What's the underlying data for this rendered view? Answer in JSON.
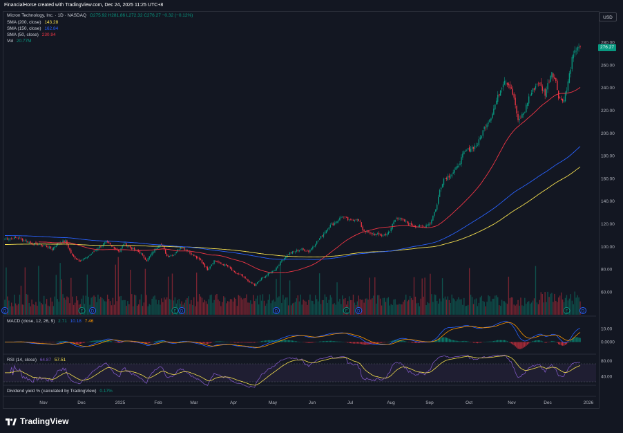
{
  "header": {
    "title": "FinancialHorse created with TradingView.com, Dec 24, 2025 11:25 UTC+8",
    "currency_button": "USD",
    "brand": "TradingView"
  },
  "legend": {
    "symbol": "Micron Technology, Inc. · 1D · NASDAQ",
    "ohlc": "O275.92 H281.86 L272.32 C276.27 −0.32 (−0.12%)",
    "sma200": {
      "label": "SMA (200, close)",
      "value": "143.28"
    },
    "sma150": {
      "label": "SMA (150, close)",
      "value": "162.84"
    },
    "sma50": {
      "label": "SMA (50, close)",
      "value": "230.94"
    },
    "vol": {
      "label": "Vol",
      "value": "20.77M"
    }
  },
  "macd_legend": {
    "label": "MACD (close, 12, 26, 9)",
    "v1": "2.71",
    "v2": "10.18",
    "v3": "7.46"
  },
  "rsi_legend": {
    "label": "RSI (14, close)",
    "v1": "64.87",
    "v2": "57.51"
  },
  "dividend_legend": {
    "label": "Dividend yield % (calculated by TradingView)",
    "value": "0.17%"
  },
  "last_price": "276.27",
  "colors": {
    "up": "#089981",
    "down": "#f23645",
    "sma200": "#f7e14f",
    "sma150": "#2962ff",
    "sma50": "#f23645",
    "rsi": "#7e57c2",
    "rsi_ma": "#f7e14f",
    "macd": "#2962ff",
    "signal": "#ff9800"
  },
  "chart_data": {
    "type": "candlestick",
    "y_range": [
      50,
      290
    ],
    "price_ticks": [
      "280.00",
      "260.00",
      "240.00",
      "220.00",
      "200.00",
      "180.00",
      "160.00",
      "140.00",
      "120.00",
      "100.00",
      "80.00",
      "60.00"
    ],
    "x_labels": [
      "Nov",
      "Dec",
      "2025",
      "Feb",
      "Mar",
      "Apr",
      "May",
      "Jun",
      "Jul",
      "Aug",
      "Sep",
      "Oct",
      "Nov",
      "Dec",
      "2026"
    ],
    "macd_ticks": [
      "10.00",
      "0.0000"
    ],
    "rsi_ticks": [
      "80.00",
      "40.00"
    ],
    "close_anchors": [
      [
        0,
        107
      ],
      [
        10,
        108
      ],
      [
        20,
        103
      ],
      [
        30,
        101
      ],
      [
        35,
        98
      ],
      [
        40,
        104
      ],
      [
        45,
        105
      ],
      [
        50,
        92
      ],
      [
        55,
        88
      ],
      [
        60,
        90
      ],
      [
        65,
        95
      ],
      [
        70,
        100
      ],
      [
        75,
        104
      ],
      [
        80,
        100
      ],
      [
        85,
        96
      ],
      [
        88,
        103
      ],
      [
        95,
        98
      ],
      [
        100,
        95
      ],
      [
        105,
        88
      ],
      [
        110,
        96
      ],
      [
        115,
        103
      ],
      [
        117,
        100
      ],
      [
        120,
        92
      ],
      [
        125,
        93
      ],
      [
        130,
        100
      ],
      [
        135,
        97
      ],
      [
        140,
        92
      ],
      [
        145,
        88
      ],
      [
        150,
        80
      ],
      [
        155,
        88
      ],
      [
        160,
        85
      ],
      [
        165,
        83
      ],
      [
        170,
        77
      ],
      [
        175,
        75
      ],
      [
        180,
        70
      ],
      [
        185,
        66
      ],
      [
        190,
        72
      ],
      [
        195,
        76
      ],
      [
        200,
        80
      ],
      [
        205,
        88
      ],
      [
        210,
        94
      ],
      [
        215,
        96
      ],
      [
        220,
        98
      ],
      [
        225,
        96
      ],
      [
        230,
        103
      ],
      [
        235,
        110
      ],
      [
        240,
        118
      ],
      [
        245,
        122
      ],
      [
        250,
        127
      ],
      [
        255,
        123
      ],
      [
        260,
        125
      ],
      [
        263,
        121
      ],
      [
        265,
        115
      ],
      [
        270,
        112
      ],
      [
        275,
        111
      ],
      [
        280,
        110
      ],
      [
        285,
        113
      ],
      [
        287,
        120
      ],
      [
        290,
        126
      ],
      [
        295,
        123
      ],
      [
        300,
        120
      ],
      [
        305,
        118
      ],
      [
        310,
        118
      ],
      [
        315,
        121
      ],
      [
        320,
        137
      ],
      [
        322,
        150
      ],
      [
        325,
        160
      ],
      [
        330,
        163
      ],
      [
        335,
        170
      ],
      [
        340,
        183
      ],
      [
        345,
        187
      ],
      [
        350,
        190
      ],
      [
        355,
        205
      ],
      [
        360,
        215
      ],
      [
        365,
        232
      ],
      [
        370,
        248
      ],
      [
        375,
        240
      ],
      [
        378,
        225
      ],
      [
        380,
        210
      ],
      [
        385,
        220
      ],
      [
        388,
        232
      ],
      [
        392,
        240
      ],
      [
        395,
        245
      ],
      [
        400,
        235
      ],
      [
        405,
        255
      ],
      [
        408,
        245
      ],
      [
        410,
        233
      ],
      [
        413,
        228
      ],
      [
        416,
        238
      ],
      [
        420,
        265
      ],
      [
        424,
        277
      ],
      [
        426,
        276
      ]
    ]
  }
}
